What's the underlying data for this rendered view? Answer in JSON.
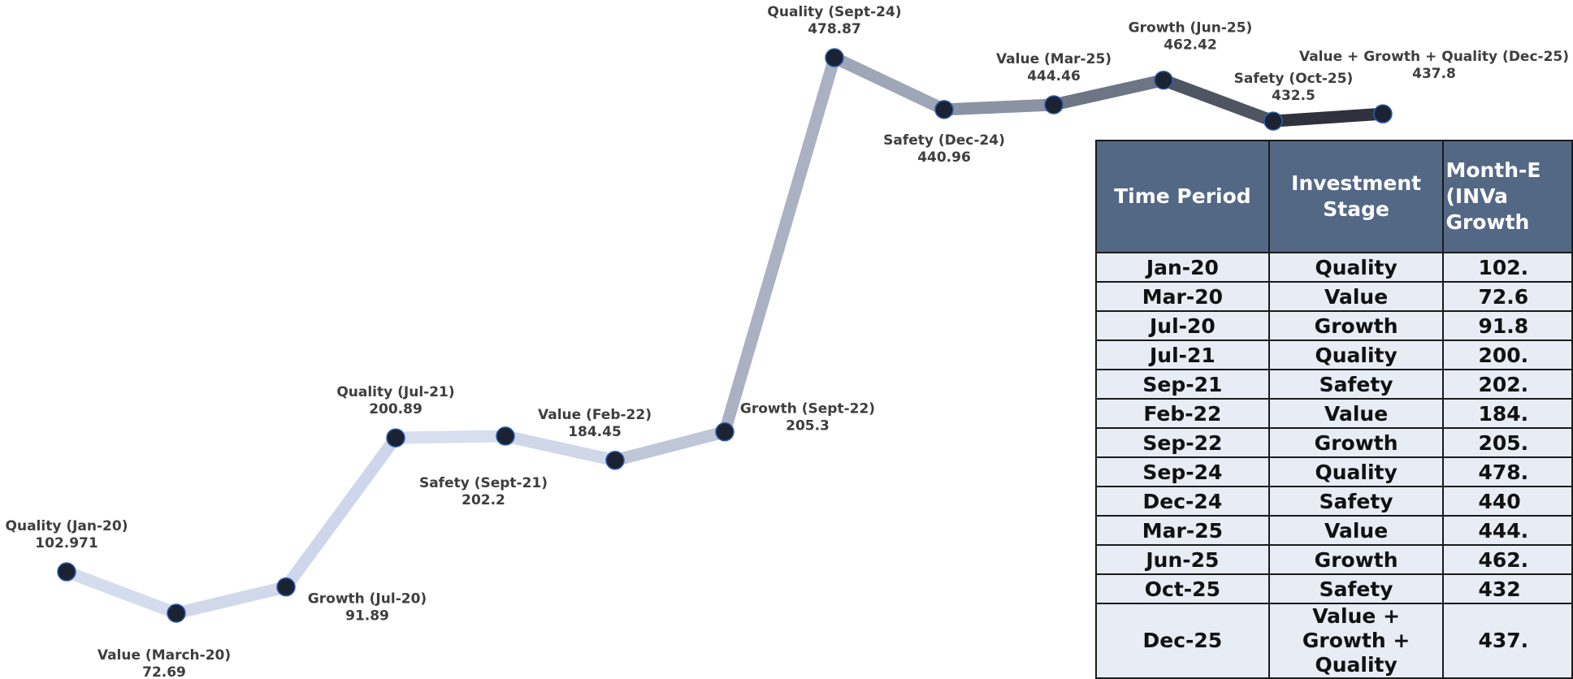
{
  "chart_data": {
    "type": "line",
    "points": [
      {
        "label": "Quality (Jan-20)",
        "value_text": "102.971",
        "y": 102.971
      },
      {
        "label": "Value (March-20)",
        "value_text": "72.69",
        "y": 72.69
      },
      {
        "label": "Growth (Jul-20)",
        "value_text": "91.89",
        "y": 91.89
      },
      {
        "label": "Quality (Jul-21)",
        "value_text": "200.89",
        "y": 200.89
      },
      {
        "label": "Safety (Sept-21)",
        "value_text": "202.2",
        "y": 202.2
      },
      {
        "label": "Value (Feb-22)",
        "value_text": "184.45",
        "y": 184.45
      },
      {
        "label": "Growth (Sept-22)",
        "value_text": "205.3",
        "y": 205.3
      },
      {
        "label": "Quality (Sept-24)",
        "value_text": "478.87",
        "y": 478.87
      },
      {
        "label": "Safety (Dec-24)",
        "value_text": "440.96",
        "y": 440.96
      },
      {
        "label": "Value (Mar-25)",
        "value_text": "444.46",
        "y": 444.46
      },
      {
        "label": "Growth (Jun-25)",
        "value_text": "462.42",
        "y": 462.42
      },
      {
        "label": "Safety (Oct-25)",
        "value_text": "432.5",
        "y": 432.5
      },
      {
        "label": "Value + Growth + Quality (Dec-25)",
        "value_text": "437.8",
        "y": 437.8
      }
    ],
    "line_colors": [
      "#d4dcee",
      "#d0d8ea",
      "#cdd6ea",
      "#d6deef",
      "#cfd7e8",
      "#bfc6d8",
      "#a9b1c3",
      "#9ea6b8",
      "#8a93a4",
      "#6e7585",
      "#4f5463",
      "#2f323c"
    ],
    "marker_color": "#1b2232"
  },
  "table": {
    "headers": [
      "Time Period",
      "Investment Stage",
      "Month-E (INVa Growth"
    ],
    "rows": [
      [
        "Jan-20",
        "Quality",
        "102."
      ],
      [
        "Mar-20",
        "Value",
        "72.6"
      ],
      [
        "Jul-20",
        "Growth",
        "91.8"
      ],
      [
        "Jul-21",
        "Quality",
        "200."
      ],
      [
        "Sep-21",
        "Safety",
        "202."
      ],
      [
        "Feb-22",
        "Value",
        "184."
      ],
      [
        "Sep-22",
        "Growth",
        "205."
      ],
      [
        "Sep-24",
        "Quality",
        "478."
      ],
      [
        "Dec-24",
        "Safety",
        "440"
      ],
      [
        "Mar-25",
        "Value",
        "444."
      ],
      [
        "Jun-25",
        "Growth",
        "462."
      ],
      [
        "Oct-25",
        "Safety",
        "432"
      ],
      [
        "Dec-25",
        "Value + Growth + Quality",
        "437."
      ]
    ],
    "header_color": "#536885",
    "cell_color": "#e7ecf5"
  }
}
